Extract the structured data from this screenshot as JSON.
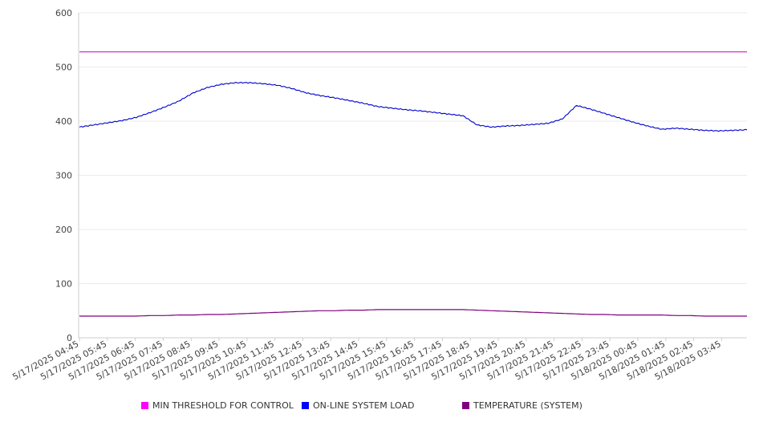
{
  "chart_data": {
    "type": "line",
    "title": "",
    "xlabel": "",
    "ylabel": "",
    "ylim": [
      0,
      600
    ],
    "yticks": [
      0,
      100,
      200,
      300,
      400,
      500,
      600
    ],
    "grid": true,
    "legend_position": "bottom",
    "x_tick_labels": [
      "5/17/2025 04:45",
      "5/17/2025 05:45",
      "5/17/2025 06:45",
      "5/17/2025 07:45",
      "5/17/2025 08:45",
      "5/17/2025 09:45",
      "5/17/2025 10:45",
      "5/17/2025 11:45",
      "5/17/2025 12:45",
      "5/17/2025 13:45",
      "5/17/2025 14:45",
      "5/17/2025 15:45",
      "5/17/2025 16:45",
      "5/17/2025 17:45",
      "5/17/2025 18:45",
      "5/17/2025 19:45",
      "5/17/2025 20:45",
      "5/17/2025 21:45",
      "5/17/2025 22:45",
      "5/17/2025 23:45",
      "5/18/2025 00:45",
      "5/18/2025 01:45",
      "5/18/2025 02:45",
      "5/18/2025 03:45"
    ],
    "x": [
      "5/17/2025 04:45",
      "5/17/2025 05:15",
      "5/17/2025 05:45",
      "5/17/2025 06:15",
      "5/17/2025 06:45",
      "5/17/2025 07:15",
      "5/17/2025 07:45",
      "5/17/2025 08:15",
      "5/17/2025 08:45",
      "5/17/2025 09:15",
      "5/17/2025 09:45",
      "5/17/2025 10:15",
      "5/17/2025 10:45",
      "5/17/2025 11:15",
      "5/17/2025 11:45",
      "5/17/2025 12:15",
      "5/17/2025 12:45",
      "5/17/2025 13:15",
      "5/17/2025 13:45",
      "5/17/2025 14:15",
      "5/17/2025 14:45",
      "5/17/2025 15:15",
      "5/17/2025 15:45",
      "5/17/2025 16:15",
      "5/17/2025 16:45",
      "5/17/2025 17:15",
      "5/17/2025 17:45",
      "5/17/2025 18:15",
      "5/17/2025 18:45",
      "5/17/2025 19:15",
      "5/17/2025 19:45",
      "5/17/2025 20:15",
      "5/17/2025 20:45",
      "5/17/2025 21:15",
      "5/17/2025 21:45",
      "5/17/2025 22:15",
      "5/17/2025 22:45",
      "5/17/2025 23:15",
      "5/17/2025 23:45",
      "5/18/2025 00:15",
      "5/18/2025 00:45",
      "5/18/2025 01:15",
      "5/18/2025 01:45",
      "5/18/2025 02:15",
      "5/18/2025 02:45",
      "5/18/2025 03:15",
      "5/18/2025 03:45",
      "5/18/2025 04:15"
    ],
    "series": [
      {
        "name": "MIN THRESHOLD FOR CONTROL",
        "color": "#cc33cc",
        "legend_color": "#ff00ff",
        "values": [
          528,
          528,
          528,
          528,
          528,
          528,
          528,
          528,
          528,
          528,
          528,
          528,
          528,
          528,
          528,
          528,
          528,
          528,
          528,
          528,
          528,
          528,
          528,
          528,
          528,
          528,
          528,
          528,
          528,
          528,
          528,
          528,
          528,
          528,
          528,
          528,
          528,
          528,
          528,
          528,
          528,
          528,
          528,
          528,
          528,
          528,
          528,
          528
        ]
      },
      {
        "name": "ON-LINE SYSTEM LOAD",
        "color": "#0000cc",
        "legend_color": "#0000ff",
        "values": [
          389,
          393,
          397,
          401,
          407,
          416,
          426,
          437,
          452,
          462,
          468,
          471,
          471,
          469,
          466,
          460,
          452,
          447,
          443,
          438,
          433,
          427,
          424,
          421,
          419,
          416,
          413,
          410,
          393,
          389,
          391,
          392,
          394,
          396,
          404,
          429,
          422,
          414,
          406,
          398,
          391,
          385,
          387,
          385,
          383,
          382,
          383,
          384
        ]
      },
      {
        "name": "TEMPERATURE (SYSTEM)",
        "color": "#800080",
        "legend_color": "#800080",
        "values": [
          40,
          40,
          40,
          40,
          40,
          41,
          41,
          42,
          42,
          43,
          43,
          44,
          45,
          46,
          47,
          48,
          49,
          50,
          50,
          51,
          51,
          52,
          52,
          52,
          52,
          52,
          52,
          52,
          51,
          50,
          49,
          48,
          47,
          46,
          45,
          44,
          43,
          43,
          42,
          42,
          42,
          42,
          41,
          41,
          40,
          40,
          40,
          40
        ]
      }
    ]
  }
}
